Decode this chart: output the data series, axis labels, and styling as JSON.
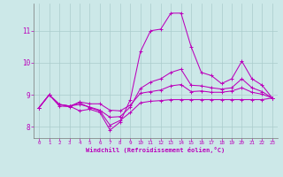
{
  "bg_color": "#cce8e8",
  "grid_color": "#aacccc",
  "line_color": "#bb00bb",
  "xlabel": "Windchill (Refroidissement éolien,°C)",
  "xlim": [
    -0.5,
    23.5
  ],
  "ylim": [
    7.65,
    11.85
  ],
  "yticks": [
    8,
    9,
    10,
    11
  ],
  "xticks": [
    0,
    1,
    2,
    3,
    4,
    5,
    6,
    7,
    8,
    9,
    10,
    11,
    12,
    13,
    14,
    15,
    16,
    17,
    18,
    19,
    20,
    21,
    22,
    23
  ],
  "lines": [
    {
      "x": [
        0,
        1,
        2,
        3,
        4,
        5,
        6,
        7,
        8,
        9,
        10,
        11,
        12,
        13,
        14,
        15,
        16,
        17,
        18,
        19,
        20,
        21,
        22,
        23
      ],
      "y": [
        8.6,
        9.0,
        8.7,
        8.65,
        8.75,
        8.6,
        8.5,
        8.05,
        8.2,
        8.45,
        8.75,
        8.8,
        8.82,
        8.85,
        8.85,
        8.85,
        8.85,
        8.85,
        8.85,
        8.85,
        8.85,
        8.85,
        8.85,
        8.9
      ]
    },
    {
      "x": [
        0,
        1,
        2,
        3,
        4,
        5,
        6,
        7,
        8,
        9,
        10,
        11,
        12,
        13,
        14,
        15,
        16,
        17,
        18,
        19,
        20,
        21,
        22,
        23
      ],
      "y": [
        8.6,
        9.0,
        8.7,
        8.65,
        8.5,
        8.55,
        8.45,
        7.9,
        8.15,
        8.85,
        10.35,
        11.0,
        11.05,
        11.55,
        11.55,
        10.5,
        9.7,
        9.6,
        9.35,
        9.5,
        10.05,
        9.5,
        9.3,
        8.9
      ]
    },
    {
      "x": [
        0,
        1,
        2,
        3,
        4,
        5,
        6,
        7,
        8,
        9,
        10,
        11,
        12,
        13,
        14,
        15,
        16,
        17,
        18,
        19,
        20,
        21,
        22,
        23
      ],
      "y": [
        8.6,
        9.0,
        8.7,
        8.65,
        8.7,
        8.62,
        8.52,
        8.3,
        8.32,
        8.62,
        9.2,
        9.4,
        9.5,
        9.7,
        9.8,
        9.3,
        9.28,
        9.22,
        9.18,
        9.22,
        9.5,
        9.22,
        9.1,
        8.9
      ]
    },
    {
      "x": [
        0,
        1,
        2,
        3,
        4,
        5,
        6,
        7,
        8,
        9,
        10,
        11,
        12,
        13,
        14,
        15,
        16,
        17,
        18,
        19,
        20,
        21,
        22,
        23
      ],
      "y": [
        8.6,
        9.0,
        8.65,
        8.63,
        8.78,
        8.72,
        8.72,
        8.52,
        8.5,
        8.68,
        9.05,
        9.1,
        9.15,
        9.28,
        9.32,
        9.1,
        9.12,
        9.08,
        9.08,
        9.12,
        9.22,
        9.08,
        9.02,
        8.9
      ]
    }
  ]
}
